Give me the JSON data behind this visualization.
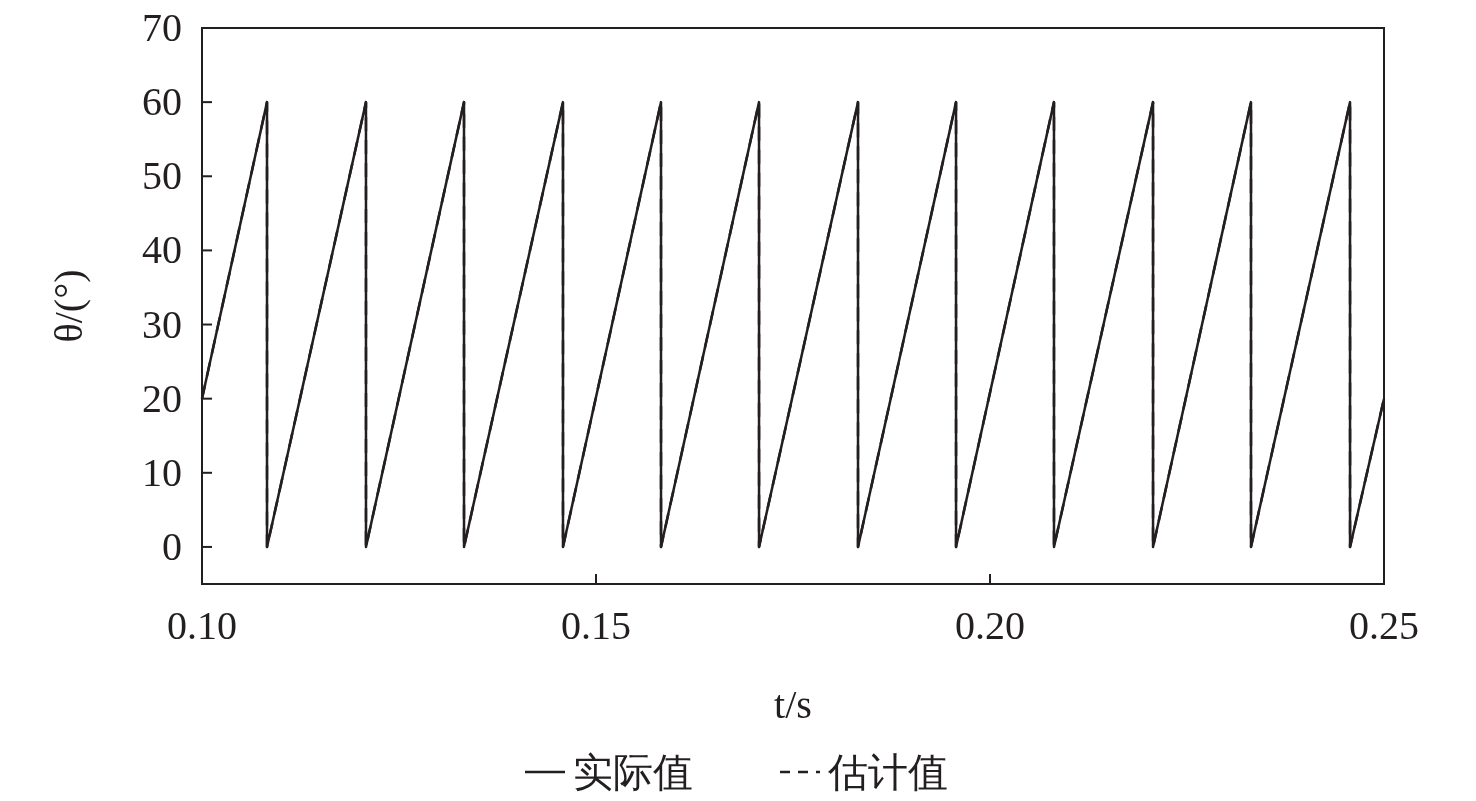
{
  "chart_data": {
    "type": "line",
    "xlabel": "t/s",
    "ylabel": "θ/(°)",
    "xlim": [
      0.1,
      0.25
    ],
    "xticks": [
      {
        "value": 0.1,
        "label": "0.10"
      },
      {
        "value": 0.15,
        "label": "0.15"
      },
      {
        "value": 0.2,
        "label": "0.20"
      },
      {
        "value": 0.25,
        "label": "0.25"
      }
    ],
    "ylim": [
      -5,
      70
    ],
    "yticks": [
      0,
      10,
      20,
      30,
      40,
      50,
      60,
      70
    ],
    "legend": "bottom",
    "x": [
      0.1,
      0.10825,
      0.10825,
      0.12081,
      0.12081,
      0.13325,
      0.13325,
      0.14581,
      0.14581,
      0.15825,
      0.15825,
      0.17069,
      0.17069,
      0.18325,
      0.18325,
      0.19569,
      0.19569,
      0.20812,
      0.20812,
      0.22069,
      0.22069,
      0.23312,
      0.23312,
      0.24569,
      0.24569,
      0.25
    ],
    "series": [
      {
        "name": "实际值",
        "color": "#231f20",
        "line_style": "solid",
        "values": [
          20,
          60,
          0,
          60,
          0,
          60,
          0,
          60,
          0,
          60,
          0,
          60,
          0,
          60,
          0,
          60,
          0,
          60,
          0,
          60,
          0,
          60,
          0,
          60,
          0,
          20
        ]
      },
      {
        "name": "估计值",
        "color": "#231f20",
        "line_style": "dashed",
        "values": [
          20,
          60,
          0,
          60,
          0,
          60,
          0,
          60,
          0,
          60,
          0,
          60,
          0,
          60,
          0,
          60,
          0,
          60,
          0,
          60,
          0,
          60,
          0,
          60,
          0,
          20
        ]
      }
    ]
  }
}
